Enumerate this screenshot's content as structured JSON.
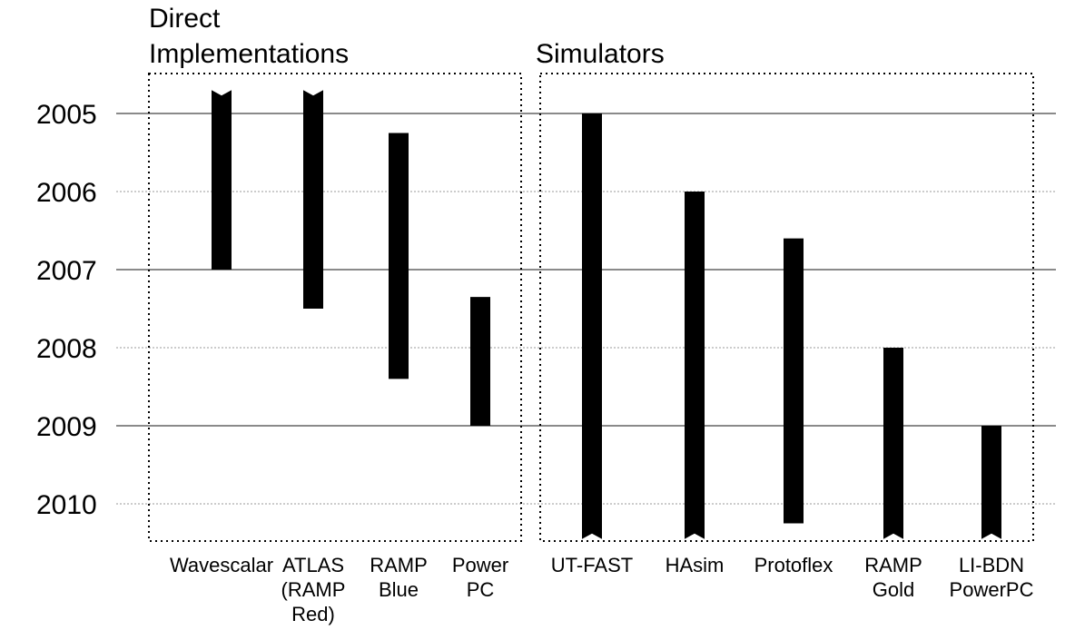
{
  "chart_data": {
    "type": "bar",
    "orientation": "vertical-ranges",
    "title": "",
    "ylabel": "",
    "yaxis": {
      "ticks": [
        "2005",
        "2006",
        "2007",
        "2008",
        "2009",
        "2010"
      ],
      "inverted": true,
      "ylim": [
        2004.7,
        2010.45
      ]
    },
    "grid": true,
    "groups": [
      {
        "label": "Direct Implementations",
        "label_lines": [
          "Direct",
          "Implementations"
        ],
        "items": [
          0,
          1,
          2,
          3
        ]
      },
      {
        "label": "Simulators",
        "label_lines": [
          "Simulators"
        ],
        "items": [
          4,
          5,
          6,
          7,
          8
        ]
      }
    ],
    "categories": [
      {
        "name": "Wavescalar",
        "lines": [
          "Wavescalar"
        ],
        "start": 2004.7,
        "end": 2007.0,
        "open_start": true,
        "open_end": false
      },
      {
        "name": "ATLAS (RAMP Red)",
        "lines": [
          "ATLAS",
          "(RAMP",
          "Red)"
        ],
        "start": 2004.7,
        "end": 2007.5,
        "open_start": true,
        "open_end": false
      },
      {
        "name": "RAMP Blue",
        "lines": [
          "RAMP",
          "Blue"
        ],
        "start": 2005.25,
        "end": 2008.4,
        "open_start": false,
        "open_end": false
      },
      {
        "name": "Power PC",
        "lines": [
          "Power",
          "PC"
        ],
        "start": 2007.35,
        "end": 2009.0,
        "open_start": false,
        "open_end": false
      },
      {
        "name": "UT-FAST",
        "lines": [
          "UT-FAST"
        ],
        "start": 2005.0,
        "end": 2010.45,
        "open_start": false,
        "open_end": true
      },
      {
        "name": "HAsim",
        "lines": [
          "HAsim"
        ],
        "start": 2006.0,
        "end": 2010.45,
        "open_start": false,
        "open_end": true
      },
      {
        "name": "Protoflex",
        "lines": [
          "Protoflex"
        ],
        "start": 2006.6,
        "end": 2010.25,
        "open_start": false,
        "open_end": false
      },
      {
        "name": "RAMP Gold",
        "lines": [
          "RAMP",
          "Gold"
        ],
        "start": 2008.0,
        "end": 2010.45,
        "open_start": false,
        "open_end": true
      },
      {
        "name": "LI-BDN PowerPC",
        "lines": [
          "LI-BDN",
          "PowerPC"
        ],
        "start": 2009.0,
        "end": 2010.45,
        "open_start": false,
        "open_end": true
      }
    ]
  }
}
